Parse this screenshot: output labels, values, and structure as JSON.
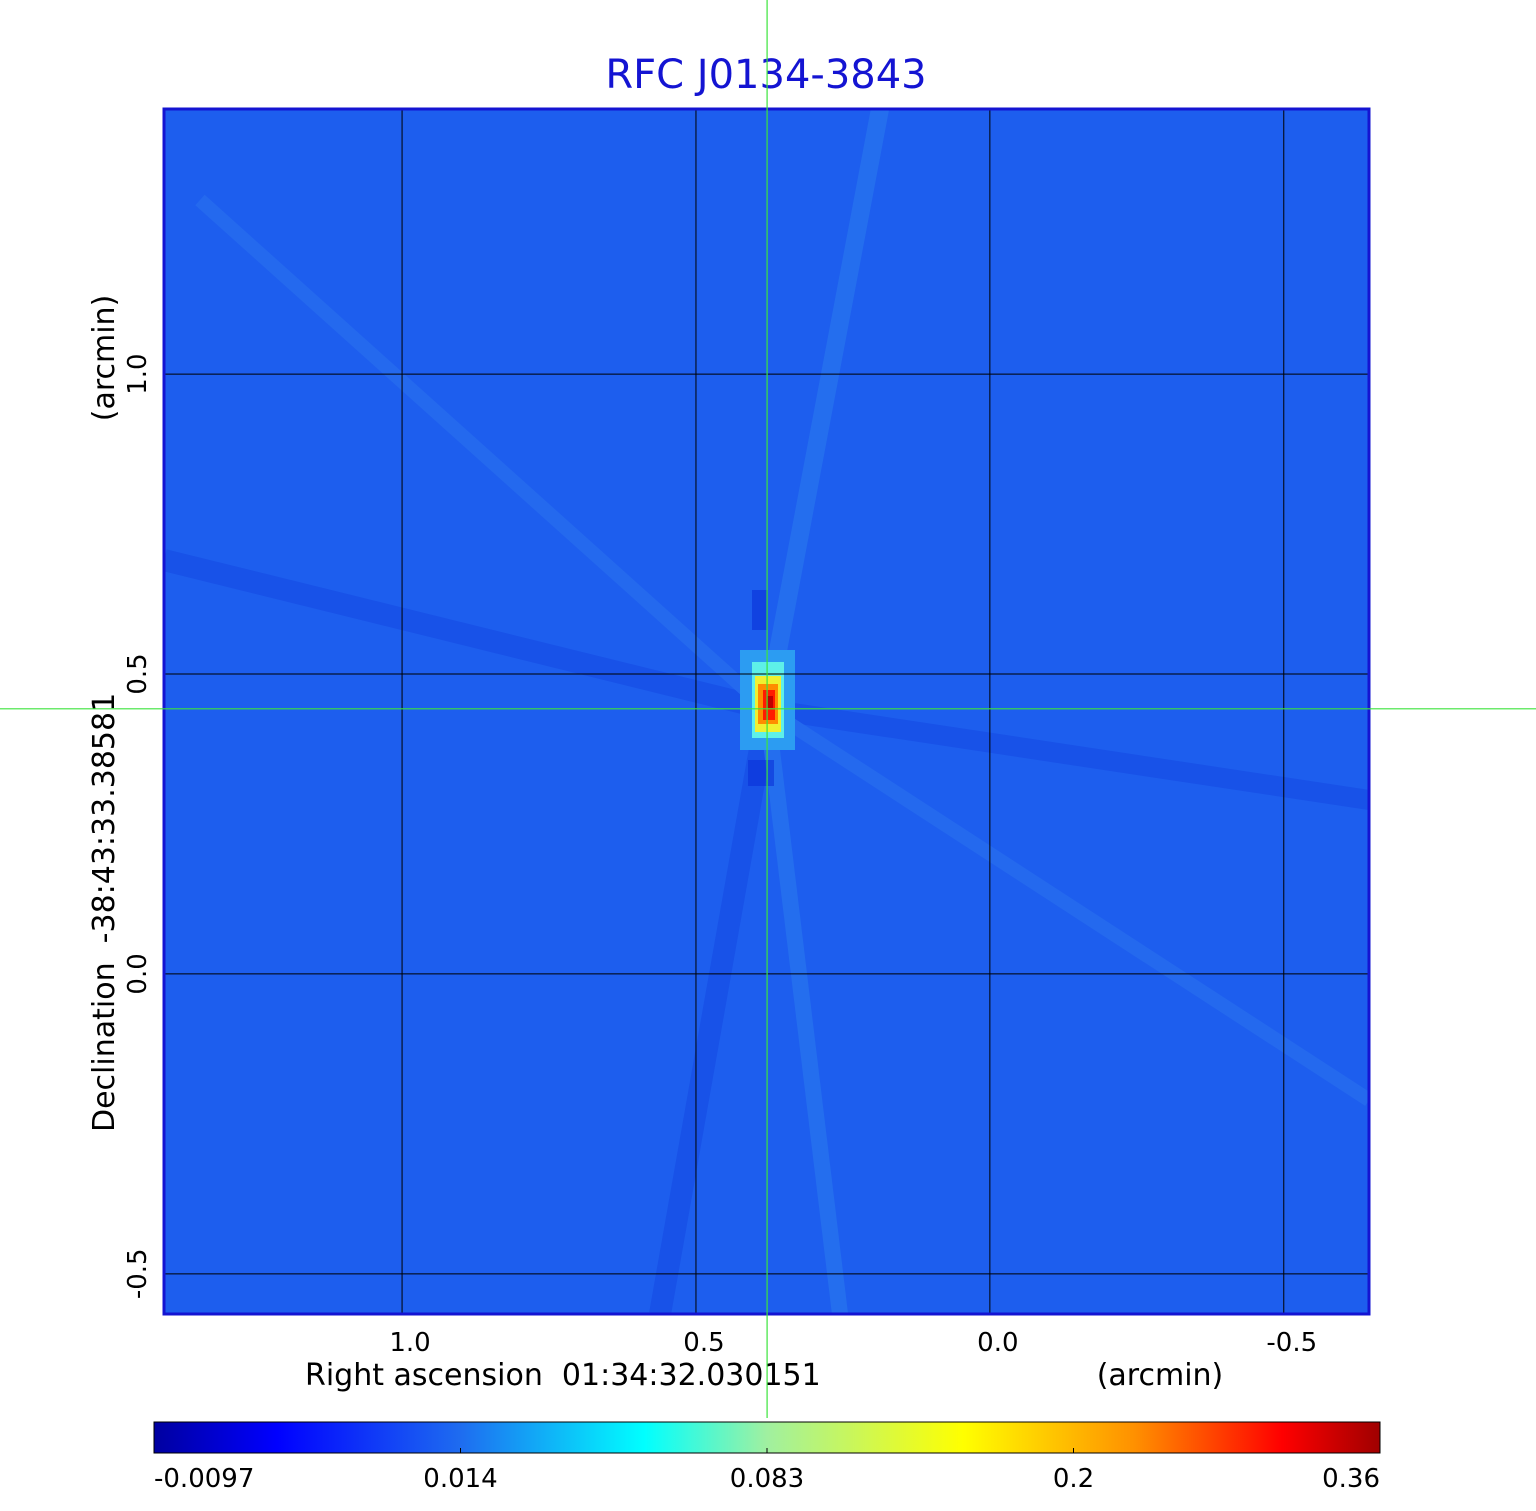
{
  "chart_data": {
    "type": "image",
    "title": "RFC J0134-3843",
    "xlabel": "Right ascension  01:34:32.030151",
    "xunit": "(arcmin)",
    "ylabel": "Declination  -38:43:33.38581",
    "yunit": "(arcmin)",
    "xlim": [
      1.405,
      -0.645
    ],
    "ylim": [
      -0.567,
      1.442
    ],
    "xticks": [
      {
        "value": 1,
        "label": "1.0"
      },
      0.5,
      {
        "value": 0,
        "label": "0.0"
      },
      -0.5
    ],
    "yticks": [
      -0.5,
      {
        "value": 0,
        "label": "0.0"
      },
      0.5,
      {
        "value": 1,
        "label": "1.0"
      }
    ],
    "grid": true,
    "crosshair": {
      "x": 0.379,
      "y": 0.442
    },
    "colorbar_ticks": [
      -0.0097,
      0.014,
      0.083,
      0.2,
      0.36
    ]
  }
}
